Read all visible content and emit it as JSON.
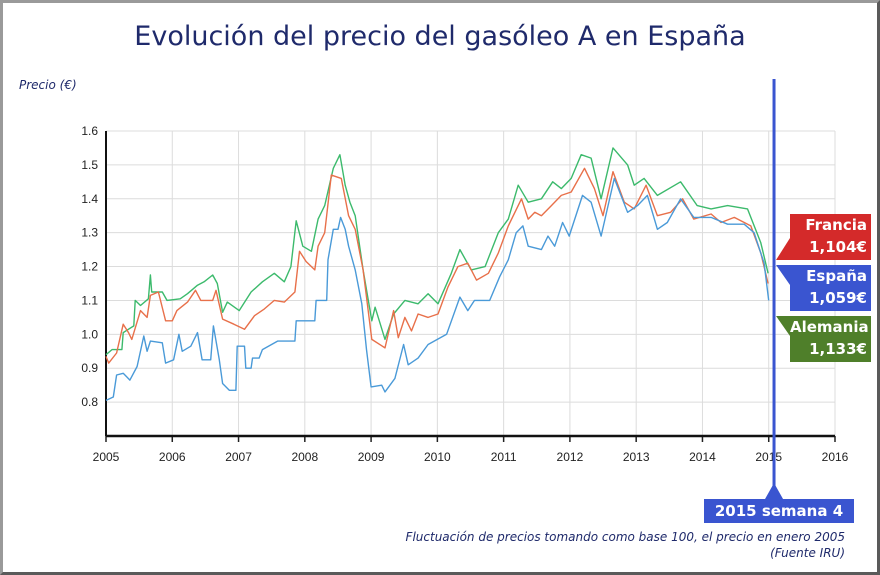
{
  "title": "Evolución del precio del gasóleo A en España",
  "chart_data": {
    "type": "line",
    "ylabel": "Precio (€)",
    "xlim": [
      2005,
      2016
    ],
    "ylim": [
      0.7,
      1.6
    ],
    "x_ticks": [
      "2005",
      "2006",
      "2007",
      "2008",
      "2009",
      "2010",
      "2011",
      "2012",
      "2013",
      "2014",
      "2015",
      "2016"
    ],
    "y_ticks": [
      "0.8",
      "0.9",
      "1.0",
      "1.1",
      "1.2",
      "1.3",
      "1.4",
      "1.5",
      "1.6"
    ],
    "grid": true,
    "series": [
      {
        "name": "Alemania",
        "color": "#3cba6c",
        "points": [
          [
            2005.0,
            0.94
          ],
          [
            2005.09,
            0.955
          ],
          [
            2005.24,
            0.955
          ],
          [
            2005.26,
            1.005
          ],
          [
            2005.42,
            1.025
          ],
          [
            2005.44,
            1.1
          ],
          [
            2005.52,
            1.085
          ],
          [
            2005.64,
            1.105
          ],
          [
            2005.67,
            1.175
          ],
          [
            2005.69,
            1.125
          ],
          [
            2005.85,
            1.125
          ],
          [
            2005.92,
            1.1
          ],
          [
            2006.12,
            1.105
          ],
          [
            2006.23,
            1.12
          ],
          [
            2006.38,
            1.145
          ],
          [
            2006.48,
            1.155
          ],
          [
            2006.61,
            1.175
          ],
          [
            2006.68,
            1.15
          ],
          [
            2006.76,
            1.065
          ],
          [
            2006.83,
            1.095
          ],
          [
            2007.01,
            1.07
          ],
          [
            2007.19,
            1.125
          ],
          [
            2007.36,
            1.155
          ],
          [
            2007.54,
            1.18
          ],
          [
            2007.69,
            1.155
          ],
          [
            2007.79,
            1.2
          ],
          [
            2007.87,
            1.335
          ],
          [
            2007.97,
            1.26
          ],
          [
            2008.1,
            1.245
          ],
          [
            2008.2,
            1.34
          ],
          [
            2008.3,
            1.38
          ],
          [
            2008.43,
            1.49
          ],
          [
            2008.53,
            1.53
          ],
          [
            2008.61,
            1.44
          ],
          [
            2008.68,
            1.39
          ],
          [
            2008.76,
            1.35
          ],
          [
            2008.88,
            1.19
          ],
          [
            2009.01,
            1.04
          ],
          [
            2009.06,
            1.08
          ],
          [
            2009.21,
            0.985
          ],
          [
            2009.34,
            1.06
          ],
          [
            2009.51,
            1.1
          ],
          [
            2009.71,
            1.09
          ],
          [
            2009.86,
            1.12
          ],
          [
            2010.01,
            1.09
          ],
          [
            2010.21,
            1.18
          ],
          [
            2010.34,
            1.25
          ],
          [
            2010.51,
            1.19
          ],
          [
            2010.72,
            1.2
          ],
          [
            2010.92,
            1.3
          ],
          [
            2011.07,
            1.34
          ],
          [
            2011.22,
            1.44
          ],
          [
            2011.37,
            1.39
          ],
          [
            2011.57,
            1.4
          ],
          [
            2011.74,
            1.45
          ],
          [
            2011.87,
            1.43
          ],
          [
            2012.02,
            1.46
          ],
          [
            2012.17,
            1.53
          ],
          [
            2012.32,
            1.52
          ],
          [
            2012.47,
            1.4
          ],
          [
            2012.65,
            1.55
          ],
          [
            2012.87,
            1.5
          ],
          [
            2012.97,
            1.44
          ],
          [
            2013.12,
            1.46
          ],
          [
            2013.32,
            1.41
          ],
          [
            2013.67,
            1.45
          ],
          [
            2013.92,
            1.38
          ],
          [
            2014.13,
            1.37
          ],
          [
            2014.38,
            1.38
          ],
          [
            2014.68,
            1.37
          ],
          [
            2014.88,
            1.27
          ],
          [
            2014.99,
            1.18
          ]
        ]
      },
      {
        "name": "Francia",
        "color": "#e8704a",
        "points": [
          [
            2005.0,
            0.935
          ],
          [
            2005.04,
            0.915
          ],
          [
            2005.16,
            0.945
          ],
          [
            2005.26,
            1.03
          ],
          [
            2005.34,
            1.005
          ],
          [
            2005.39,
            0.985
          ],
          [
            2005.52,
            1.07
          ],
          [
            2005.62,
            1.05
          ],
          [
            2005.67,
            1.115
          ],
          [
            2005.79,
            1.125
          ],
          [
            2005.9,
            1.04
          ],
          [
            2006.0,
            1.04
          ],
          [
            2006.07,
            1.07
          ],
          [
            2006.23,
            1.095
          ],
          [
            2006.35,
            1.13
          ],
          [
            2006.43,
            1.1
          ],
          [
            2006.61,
            1.1
          ],
          [
            2006.66,
            1.13
          ],
          [
            2006.76,
            1.045
          ],
          [
            2006.93,
            1.03
          ],
          [
            2007.09,
            1.015
          ],
          [
            2007.24,
            1.055
          ],
          [
            2007.39,
            1.075
          ],
          [
            2007.54,
            1.1
          ],
          [
            2007.69,
            1.095
          ],
          [
            2007.85,
            1.125
          ],
          [
            2007.92,
            1.245
          ],
          [
            2008.02,
            1.215
          ],
          [
            2008.15,
            1.19
          ],
          [
            2008.2,
            1.26
          ],
          [
            2008.3,
            1.3
          ],
          [
            2008.4,
            1.47
          ],
          [
            2008.55,
            1.46
          ],
          [
            2008.66,
            1.35
          ],
          [
            2008.76,
            1.31
          ],
          [
            2008.88,
            1.19
          ],
          [
            2009.01,
            0.985
          ],
          [
            2009.21,
            0.96
          ],
          [
            2009.34,
            1.07
          ],
          [
            2009.41,
            0.99
          ],
          [
            2009.51,
            1.05
          ],
          [
            2009.61,
            1.01
          ],
          [
            2009.71,
            1.06
          ],
          [
            2009.86,
            1.05
          ],
          [
            2010.01,
            1.06
          ],
          [
            2010.16,
            1.14
          ],
          [
            2010.31,
            1.2
          ],
          [
            2010.46,
            1.21
          ],
          [
            2010.59,
            1.16
          ],
          [
            2010.77,
            1.18
          ],
          [
            2010.92,
            1.24
          ],
          [
            2011.07,
            1.32
          ],
          [
            2011.27,
            1.4
          ],
          [
            2011.37,
            1.34
          ],
          [
            2011.47,
            1.36
          ],
          [
            2011.57,
            1.35
          ],
          [
            2011.72,
            1.38
          ],
          [
            2011.87,
            1.41
          ],
          [
            2012.02,
            1.42
          ],
          [
            2012.22,
            1.49
          ],
          [
            2012.37,
            1.43
          ],
          [
            2012.5,
            1.35
          ],
          [
            2012.65,
            1.48
          ],
          [
            2012.82,
            1.39
          ],
          [
            2012.97,
            1.37
          ],
          [
            2013.15,
            1.44
          ],
          [
            2013.32,
            1.35
          ],
          [
            2013.52,
            1.36
          ],
          [
            2013.7,
            1.4
          ],
          [
            2013.87,
            1.34
          ],
          [
            2014.13,
            1.355
          ],
          [
            2014.28,
            1.33
          ],
          [
            2014.48,
            1.345
          ],
          [
            2014.73,
            1.32
          ],
          [
            2014.88,
            1.24
          ],
          [
            2014.99,
            1.15
          ]
        ]
      },
      {
        "name": "España",
        "color": "#4a9ad8",
        "points": [
          [
            2005.0,
            0.805
          ],
          [
            2005.11,
            0.815
          ],
          [
            2005.16,
            0.88
          ],
          [
            2005.26,
            0.885
          ],
          [
            2005.36,
            0.865
          ],
          [
            2005.47,
            0.905
          ],
          [
            2005.57,
            0.995
          ],
          [
            2005.62,
            0.95
          ],
          [
            2005.67,
            0.98
          ],
          [
            2005.85,
            0.975
          ],
          [
            2005.9,
            0.915
          ],
          [
            2006.02,
            0.925
          ],
          [
            2006.1,
            1.0
          ],
          [
            2006.15,
            0.95
          ],
          [
            2006.28,
            0.965
          ],
          [
            2006.38,
            1.005
          ],
          [
            2006.45,
            0.925
          ],
          [
            2006.58,
            0.925
          ],
          [
            2006.62,
            1.025
          ],
          [
            2006.71,
            0.925
          ],
          [
            2006.76,
            0.855
          ],
          [
            2006.86,
            0.835
          ],
          [
            2006.96,
            0.835
          ],
          [
            2006.98,
            0.965
          ],
          [
            2007.09,
            0.965
          ],
          [
            2007.11,
            0.9
          ],
          [
            2007.19,
            0.9
          ],
          [
            2007.21,
            0.93
          ],
          [
            2007.31,
            0.93
          ],
          [
            2007.36,
            0.955
          ],
          [
            2007.59,
            0.98
          ],
          [
            2007.85,
            0.98
          ],
          [
            2007.87,
            1.04
          ],
          [
            2008.15,
            1.04
          ],
          [
            2008.17,
            1.1
          ],
          [
            2008.33,
            1.1
          ],
          [
            2008.35,
            1.22
          ],
          [
            2008.43,
            1.31
          ],
          [
            2008.5,
            1.31
          ],
          [
            2008.54,
            1.345
          ],
          [
            2008.61,
            1.31
          ],
          [
            2008.66,
            1.26
          ],
          [
            2008.76,
            1.19
          ],
          [
            2008.86,
            1.09
          ],
          [
            2008.93,
            0.955
          ],
          [
            2009.0,
            0.845
          ],
          [
            2009.16,
            0.85
          ],
          [
            2009.21,
            0.83
          ],
          [
            2009.36,
            0.87
          ],
          [
            2009.49,
            0.97
          ],
          [
            2009.56,
            0.91
          ],
          [
            2009.71,
            0.93
          ],
          [
            2009.86,
            0.97
          ],
          [
            2010.14,
            1.0
          ],
          [
            2010.34,
            1.11
          ],
          [
            2010.46,
            1.07
          ],
          [
            2010.56,
            1.1
          ],
          [
            2010.79,
            1.1
          ],
          [
            2010.94,
            1.17
          ],
          [
            2011.07,
            1.22
          ],
          [
            2011.19,
            1.3
          ],
          [
            2011.29,
            1.32
          ],
          [
            2011.37,
            1.26
          ],
          [
            2011.57,
            1.25
          ],
          [
            2011.67,
            1.29
          ],
          [
            2011.77,
            1.26
          ],
          [
            2011.89,
            1.33
          ],
          [
            2011.99,
            1.29
          ],
          [
            2012.19,
            1.41
          ],
          [
            2012.32,
            1.39
          ],
          [
            2012.47,
            1.29
          ],
          [
            2012.67,
            1.46
          ],
          [
            2012.87,
            1.36
          ],
          [
            2013.02,
            1.38
          ],
          [
            2013.17,
            1.41
          ],
          [
            2013.32,
            1.31
          ],
          [
            2013.47,
            1.33
          ],
          [
            2013.67,
            1.4
          ],
          [
            2013.87,
            1.345
          ],
          [
            2014.13,
            1.345
          ],
          [
            2014.38,
            1.325
          ],
          [
            2014.63,
            1.325
          ],
          [
            2014.78,
            1.3
          ],
          [
            2014.93,
            1.21
          ],
          [
            2015.0,
            1.1
          ]
        ]
      }
    ],
    "marker": {
      "x": 2015.08,
      "label": "2015 semana 4",
      "color": "#3a55d0"
    },
    "callouts": [
      {
        "country": "Francia",
        "price": "1,104€",
        "color": "#d42a2a"
      },
      {
        "country": "España",
        "price": "1,059€",
        "color": "#3a55d0"
      },
      {
        "country": "Alemania",
        "price": "1,133€",
        "color": "#4f7f2a"
      }
    ]
  },
  "note": {
    "line1": "Fluctuación de precios tomando como base 100, el precio en enero 2005",
    "line2": "(Fuente IRU)"
  }
}
